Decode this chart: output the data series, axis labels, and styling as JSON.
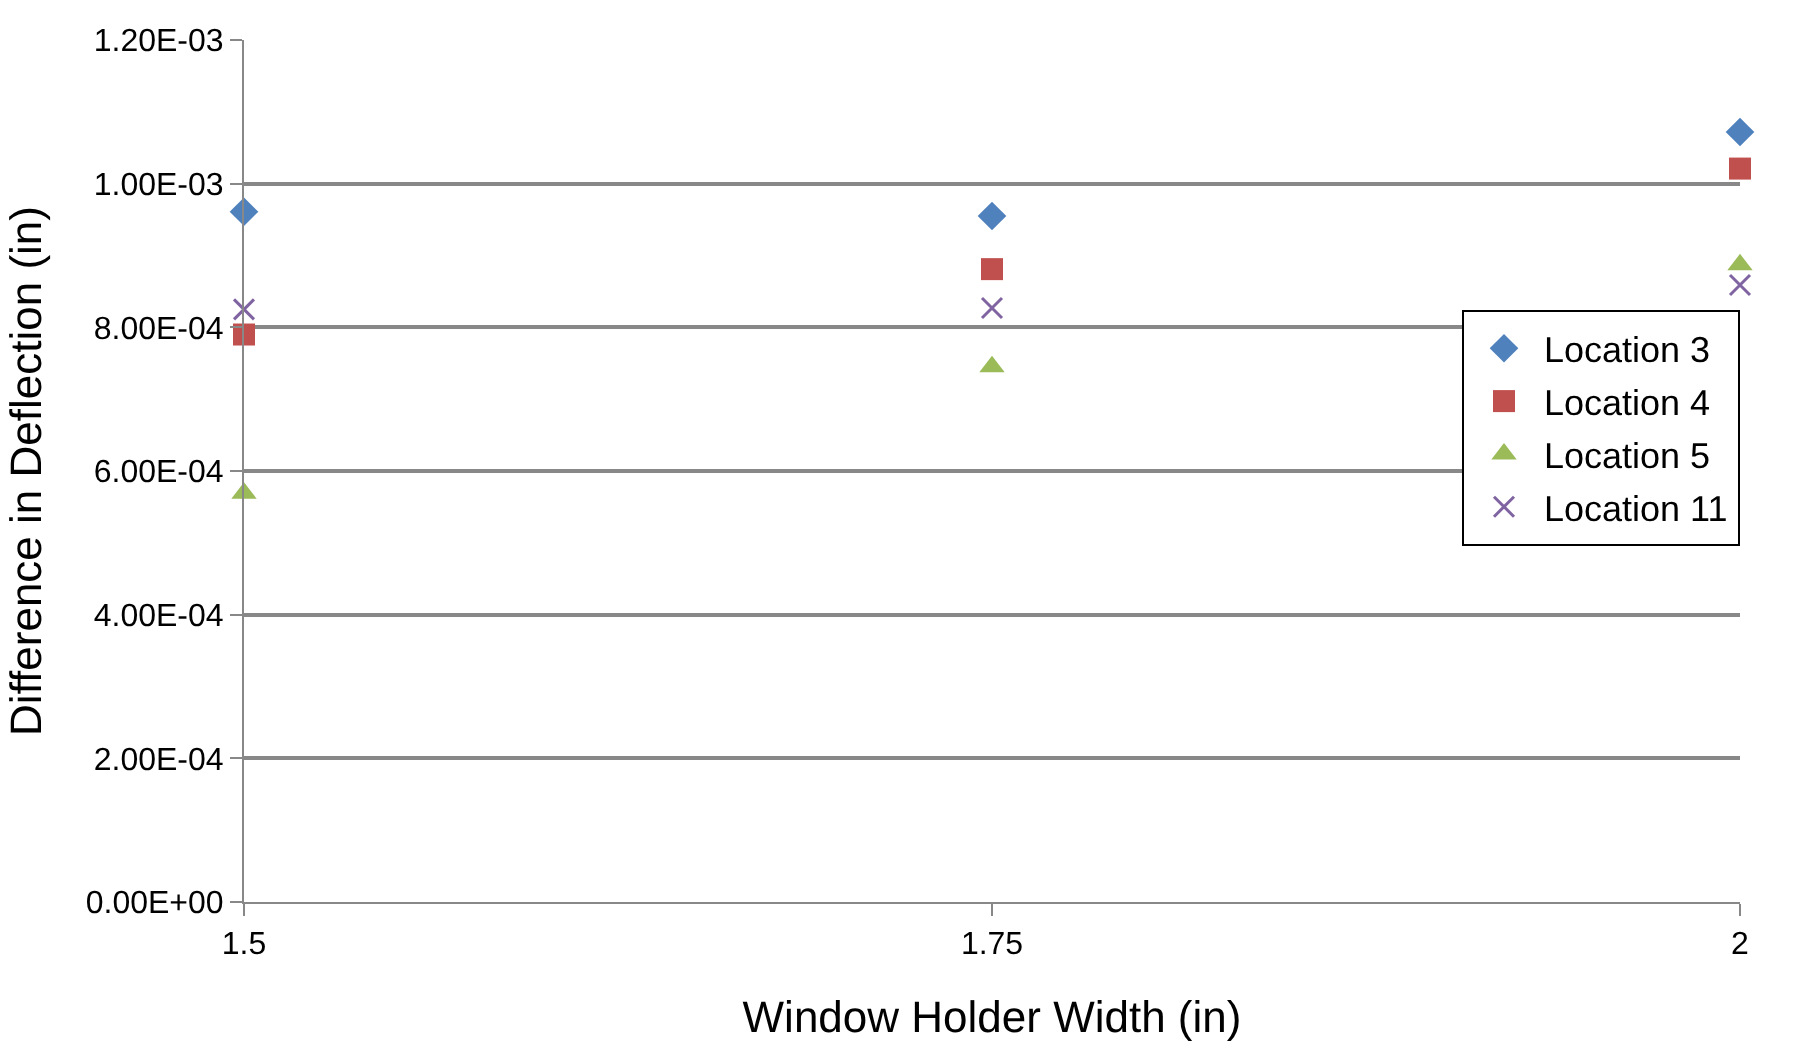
{
  "chart_data": {
    "type": "scatter",
    "xlabel": "Window Holder Width (in)",
    "ylabel": "Difference in Deflection (in)",
    "x": [
      1.5,
      1.75,
      2
    ],
    "series": [
      {
        "name": "Location 3",
        "color": "#4f81bd",
        "marker": "diamond",
        "values": [
          0.000961,
          0.000955,
          0.001072
        ]
      },
      {
        "name": "Location 4",
        "color": "#c0504d",
        "marker": "square",
        "values": [
          0.00079,
          0.000881,
          0.001021
        ]
      },
      {
        "name": "Location 5",
        "color": "#9bbb59",
        "marker": "triangle",
        "values": [
          0.000569,
          0.000745,
          0.000887
        ]
      },
      {
        "name": "Location 11",
        "color": "#8064a2",
        "marker": "cross",
        "values": [
          0.000825,
          0.000827,
          0.000859
        ]
      }
    ],
    "xlim": [
      1.5,
      2
    ],
    "xticks": [
      1.5,
      1.75,
      2
    ],
    "ylim": [
      0,
      0.0012
    ],
    "yticks": [
      {
        "value": 0,
        "label": "0.00E+00"
      },
      {
        "value": 0.0002,
        "label": "2.00E-04"
      },
      {
        "value": 0.0004,
        "label": "4.00E-04"
      },
      {
        "value": 0.0006,
        "label": "6.00E-04"
      },
      {
        "value": 0.0008,
        "label": "8.00E-04"
      },
      {
        "value": 0.001,
        "label": "1.00E-03"
      },
      {
        "value": 0.0012,
        "label": "1.20E-03"
      }
    ],
    "grid": "y",
    "legend": "right"
  }
}
